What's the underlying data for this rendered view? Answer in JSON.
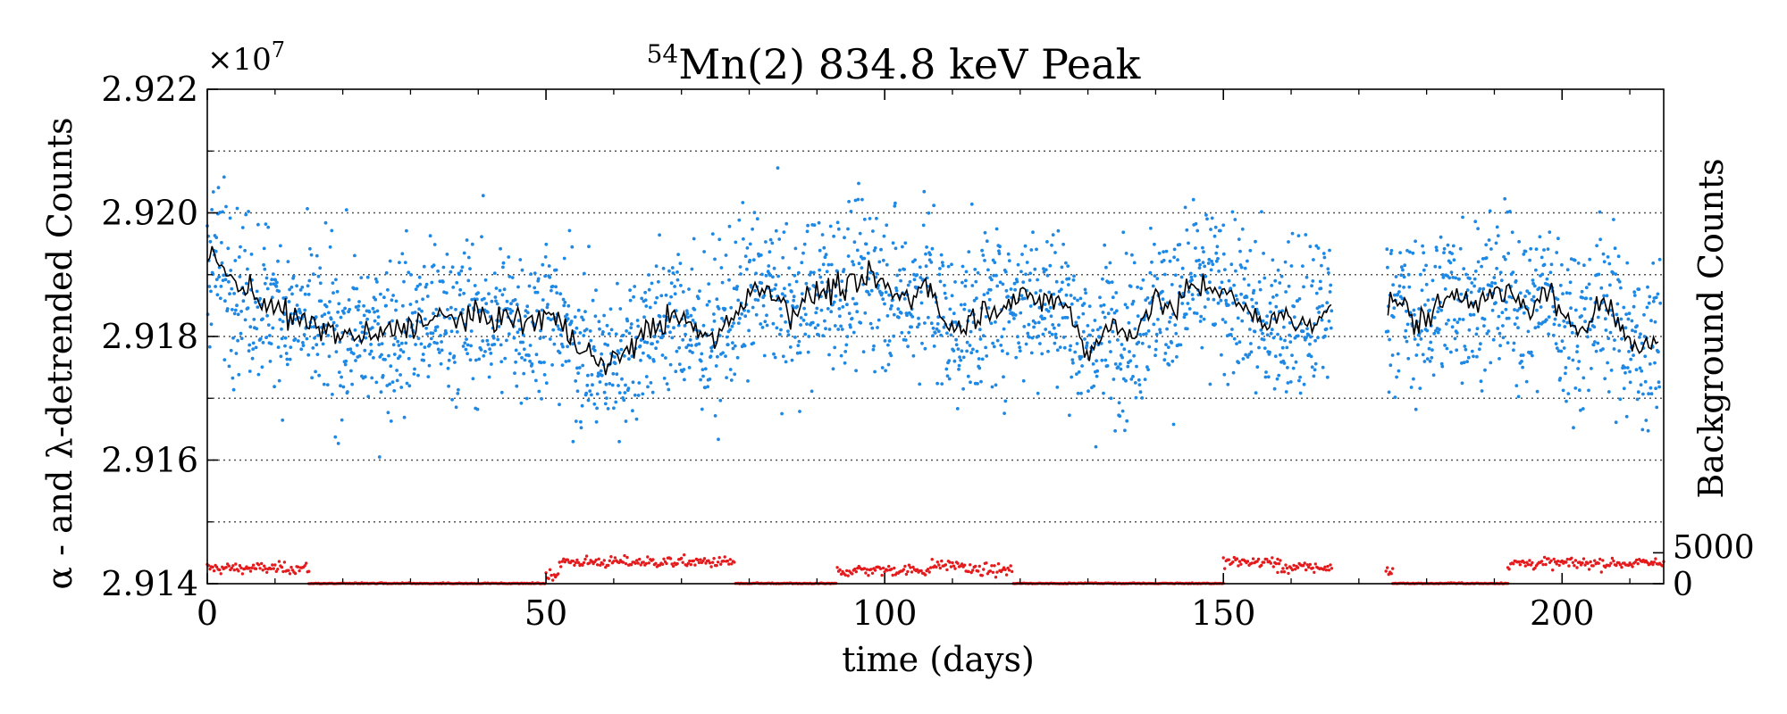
{
  "chart_data": {
    "type": "scatter",
    "title_sup": "54",
    "title_main": "Mn(2) 834.8 keV Peak",
    "xlabel": "time (days)",
    "ylabel": "α - and λ-detrended Counts",
    "ylabel_right": "Background Counts",
    "y_multiplier": "×10",
    "y_multiplier_exp": "7",
    "xlim": [
      0,
      215
    ],
    "ylim": [
      2.914,
      2.922
    ],
    "x_ticks": [
      0,
      50,
      100,
      150,
      200
    ],
    "x_tick_labels": [
      "0",
      "50",
      "100",
      "150",
      "200"
    ],
    "y_ticks": [
      2.914,
      2.916,
      2.918,
      2.92,
      2.922
    ],
    "y_tick_labels": [
      "2.914",
      "2.916",
      "2.918",
      "2.920",
      "2.922"
    ],
    "y_right_ticks": [
      0,
      5000
    ],
    "y_right_tick_labels": [
      "0",
      "5000"
    ],
    "y_right_range": [
      0,
      80000
    ],
    "grid": "horizontal dotted",
    "colors": {
      "counts": "#1e88e5",
      "running_average": "#000000",
      "background": "#e41a1c"
    },
    "series": [
      {
        "name": "detrended counts",
        "style": "points",
        "scatter_sigma": 0.00065,
        "gaps": [
          [
            166,
            174
          ]
        ]
      },
      {
        "name": "running average",
        "style": "line",
        "knots": [
          [
            0,
            2.9194
          ],
          [
            2,
            2.9191
          ],
          [
            5,
            2.9188
          ],
          [
            8,
            2.9186
          ],
          [
            10,
            2.9185
          ],
          [
            12,
            2.9183
          ],
          [
            15,
            2.9182
          ],
          [
            18,
            2.9181
          ],
          [
            20,
            2.918
          ],
          [
            25,
            2.918
          ],
          [
            30,
            2.9182
          ],
          [
            35,
            2.9183
          ],
          [
            40,
            2.9183
          ],
          [
            45,
            2.9183
          ],
          [
            48,
            2.9182
          ],
          [
            50,
            2.9184
          ],
          [
            52,
            2.9182
          ],
          [
            55,
            2.9179
          ],
          [
            58,
            2.9175
          ],
          [
            60,
            2.9176
          ],
          [
            63,
            2.9179
          ],
          [
            66,
            2.9182
          ],
          [
            70,
            2.9183
          ],
          [
            73,
            2.918
          ],
          [
            75,
            2.918
          ],
          [
            78,
            2.9184
          ],
          [
            80,
            2.9187
          ],
          [
            83,
            2.9188
          ],
          [
            86,
            2.9184
          ],
          [
            90,
            2.9187
          ],
          [
            93,
            2.9188
          ],
          [
            96,
            2.9188
          ],
          [
            98,
            2.919
          ],
          [
            101,
            2.9187
          ],
          [
            104,
            2.9186
          ],
          [
            106,
            2.919
          ],
          [
            108,
            2.9184
          ],
          [
            110,
            2.9181
          ],
          [
            113,
            2.9183
          ],
          [
            116,
            2.9185
          ],
          [
            120,
            2.9186
          ],
          [
            124,
            2.9186
          ],
          [
            127,
            2.9185
          ],
          [
            130,
            2.9177
          ],
          [
            133,
            2.9182
          ],
          [
            136,
            2.918
          ],
          [
            140,
            2.9186
          ],
          [
            143,
            2.9184
          ],
          [
            145,
            2.9188
          ],
          [
            148,
            2.9188
          ],
          [
            150,
            2.9188
          ],
          [
            152,
            2.9185
          ],
          [
            156,
            2.9182
          ],
          [
            158,
            2.9184
          ],
          [
            160,
            2.9182
          ],
          [
            163,
            2.9182
          ],
          [
            165,
            2.9185
          ],
          [
            174,
            2.9185
          ],
          [
            176,
            2.9186
          ],
          [
            178,
            2.9182
          ],
          [
            181,
            2.9184
          ],
          [
            184,
            2.9187
          ],
          [
            188,
            2.9186
          ],
          [
            192,
            2.9187
          ],
          [
            195,
            2.9184
          ],
          [
            198,
            2.9188
          ],
          [
            200,
            2.9182
          ],
          [
            203,
            2.9182
          ],
          [
            206,
            2.9186
          ],
          [
            209,
            2.9181
          ],
          [
            211,
            2.9178
          ],
          [
            213,
            2.9179
          ],
          [
            215,
            2.918
          ]
        ]
      },
      {
        "name": "background counts",
        "style": "points",
        "axis": "right",
        "steps": [
          [
            0,
            15,
            2500
          ],
          [
            15,
            50,
            0
          ],
          [
            50,
            52,
            1500
          ],
          [
            52,
            78,
            3500
          ],
          [
            78,
            93,
            0
          ],
          [
            93,
            95,
            2000
          ],
          [
            95,
            107,
            2200
          ],
          [
            107,
            112,
            3000
          ],
          [
            112,
            119,
            2200
          ],
          [
            119,
            150,
            0
          ],
          [
            150,
            158,
            3500
          ],
          [
            158,
            166,
            2600
          ],
          [
            174,
            175,
            2000
          ],
          [
            175,
            192,
            0
          ],
          [
            192,
            215,
            3300
          ]
        ]
      }
    ]
  }
}
